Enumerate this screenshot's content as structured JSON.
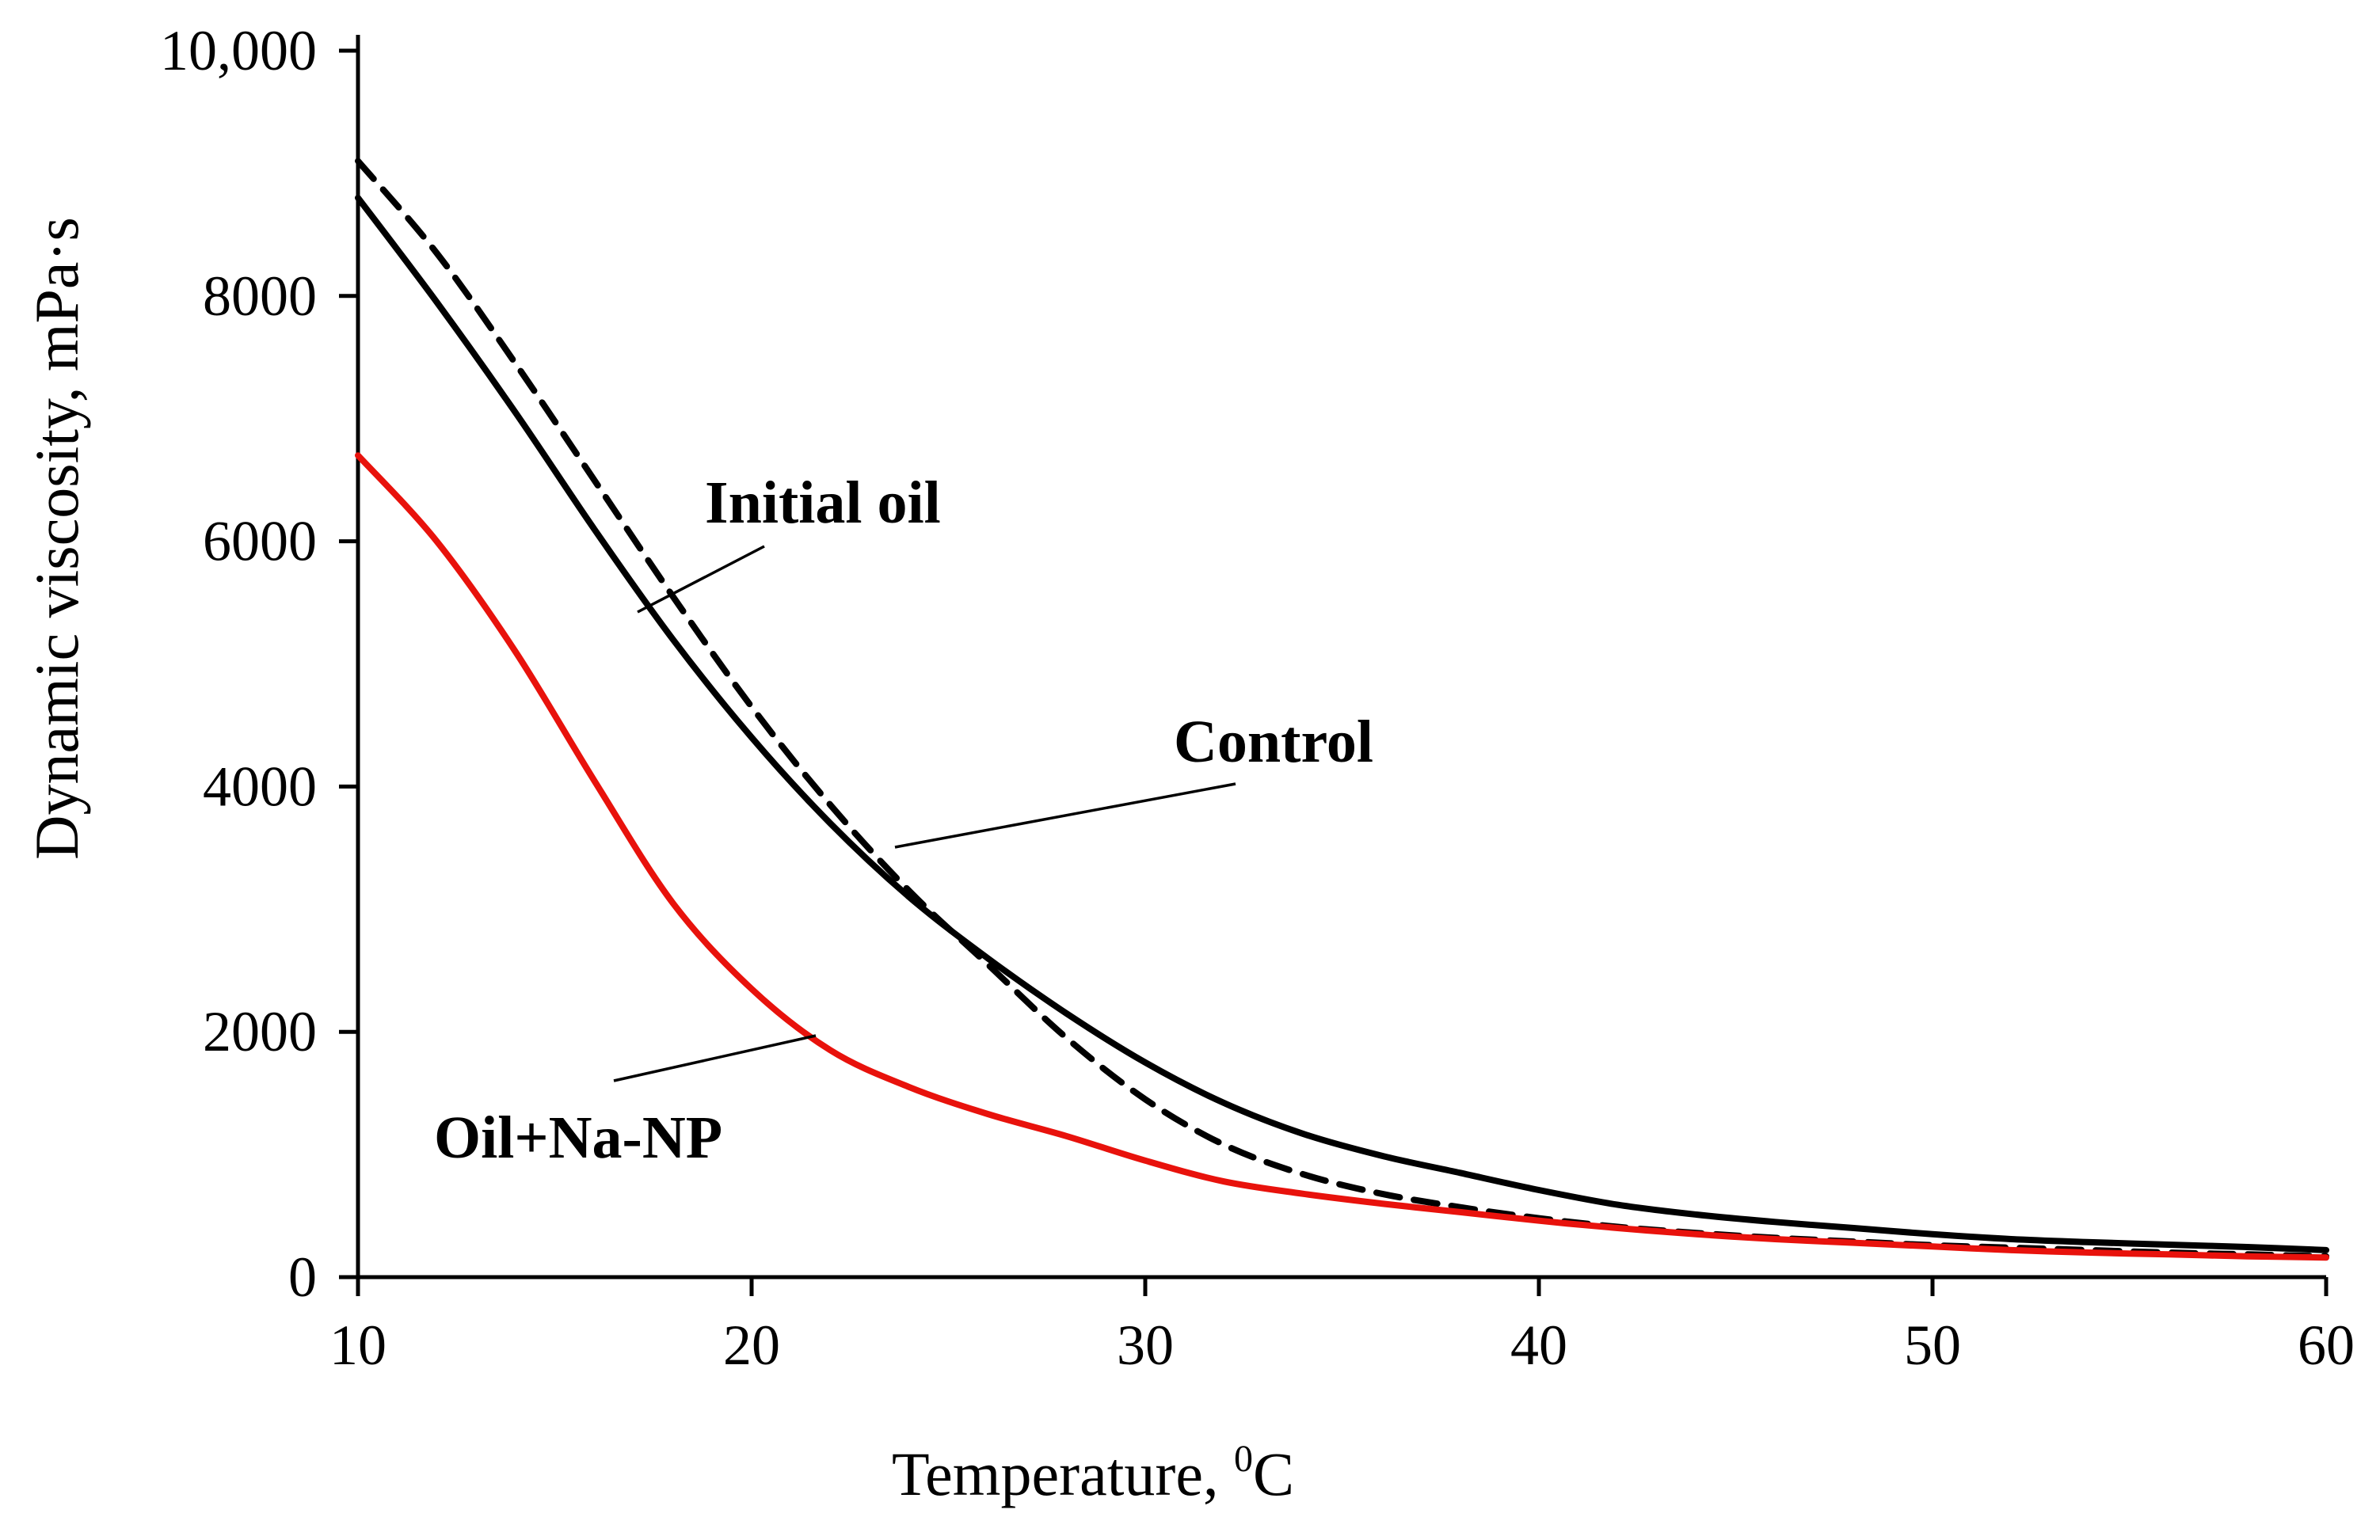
{
  "chart_data": {
    "type": "line",
    "title": "",
    "xlabel": "Temperature, ",
    "xlabel_superscript": "0",
    "xlabel_suffix": "C",
    "ylabel": "Dynamic viscosity, mPa·s",
    "xlim": [
      10,
      60
    ],
    "ylim": [
      0,
      10000
    ],
    "x_ticks": [
      10,
      20,
      30,
      40,
      50,
      60
    ],
    "x_tick_labels": [
      "10",
      "20",
      "30",
      "40",
      "50",
      "60"
    ],
    "y_ticks": [
      0,
      2000,
      4000,
      6000,
      8000,
      10000
    ],
    "y_tick_labels": [
      "0",
      "2000",
      "4000",
      "6000",
      "8000",
      "10,000"
    ],
    "grid": false,
    "series": [
      {
        "name": "Initial oil",
        "color": "#000000",
        "dash": "solid",
        "x": [
          10,
          12,
          14,
          16,
          18,
          20,
          22,
          24,
          26,
          28,
          30,
          32,
          34,
          36,
          38,
          40,
          42,
          44,
          46,
          48,
          50,
          52,
          54,
          56,
          58,
          60
        ],
        "y": [
          8800,
          7950,
          7050,
          6100,
          5200,
          4400,
          3700,
          3100,
          2600,
          2150,
          1750,
          1420,
          1170,
          990,
          850,
          710,
          590,
          510,
          450,
          400,
          350,
          310,
          285,
          265,
          245,
          220
        ]
      },
      {
        "name": "Control",
        "color": "#000000",
        "dash": "dashed",
        "x": [
          10,
          12,
          14,
          16,
          18,
          20,
          22,
          24,
          26,
          28,
          30,
          32,
          34,
          36,
          38,
          40,
          42,
          44,
          46,
          48,
          50,
          52,
          54,
          56,
          58,
          60
        ],
        "y": [
          9100,
          8350,
          7450,
          6500,
          5550,
          4650,
          3850,
          3150,
          2550,
          1950,
          1450,
          1080,
          840,
          680,
          570,
          480,
          410,
          360,
          320,
          290,
          260,
          240,
          220,
          200,
          185,
          170
        ]
      },
      {
        "name": "Oil+Na-NP",
        "color": "#e8120c",
        "dash": "solid",
        "x": [
          10,
          12,
          14,
          16,
          18,
          20,
          22,
          24,
          26,
          28,
          30,
          32,
          34,
          36,
          38,
          40,
          42,
          44,
          46,
          48,
          50,
          52,
          54,
          56,
          58,
          60
        ],
        "y": [
          6700,
          6000,
          5100,
          4050,
          3050,
          2350,
          1850,
          1550,
          1330,
          1150,
          950,
          780,
          680,
          600,
          530,
          460,
          400,
          350,
          310,
          280,
          250,
          220,
          200,
          185,
          170,
          160
        ]
      }
    ],
    "annotations": [
      {
        "text": "Initial oil",
        "series": "Initial oil"
      },
      {
        "text": "Control",
        "series": "Control"
      },
      {
        "text": "Oil+Na-NP",
        "series": "Oil+Na-NP"
      }
    ]
  }
}
